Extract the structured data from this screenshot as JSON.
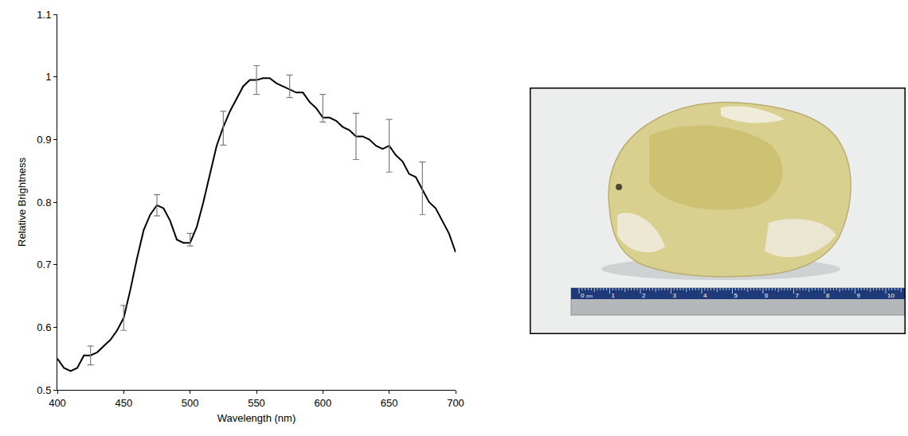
{
  "chart_data": {
    "type": "line",
    "x_label": "Wavelength (nm)",
    "y_label": "Relative Brightness",
    "x": [
      400,
      405,
      410,
      415,
      420,
      425,
      430,
      435,
      440,
      445,
      450,
      455,
      460,
      465,
      470,
      475,
      480,
      485,
      490,
      495,
      500,
      505,
      510,
      515,
      520,
      525,
      530,
      535,
      540,
      545,
      550,
      555,
      560,
      565,
      570,
      575,
      580,
      585,
      590,
      595,
      600,
      605,
      610,
      615,
      620,
      625,
      630,
      635,
      640,
      645,
      650,
      655,
      660,
      665,
      670,
      675,
      680,
      685,
      690,
      695,
      700
    ],
    "values": [
      0.55,
      0.535,
      0.53,
      0.535,
      0.555,
      0.555,
      0.56,
      0.57,
      0.58,
      0.595,
      0.615,
      0.66,
      0.71,
      0.755,
      0.78,
      0.795,
      0.79,
      0.77,
      0.74,
      0.735,
      0.735,
      0.76,
      0.8,
      0.845,
      0.89,
      0.92,
      0.945,
      0.965,
      0.985,
      0.995,
      0.995,
      0.998,
      0.998,
      0.99,
      0.985,
      0.98,
      0.975,
      0.975,
      0.96,
      0.95,
      0.935,
      0.935,
      0.93,
      0.92,
      0.915,
      0.905,
      0.905,
      0.9,
      0.89,
      0.885,
      0.89,
      0.875,
      0.865,
      0.845,
      0.84,
      0.82,
      0.8,
      0.79,
      0.77,
      0.75,
      0.72
    ],
    "color": "#000000",
    "error_bars": {
      "x": [
        425,
        450,
        475,
        500,
        525,
        550,
        575,
        600,
        625,
        650,
        675
      ],
      "values": [
        0.555,
        0.615,
        0.795,
        0.74,
        0.918,
        0.995,
        0.985,
        0.95,
        0.905,
        0.89,
        0.822
      ],
      "error": [
        0.015,
        0.02,
        0.017,
        0.01,
        0.027,
        0.023,
        0.018,
        0.022,
        0.037,
        0.042,
        0.042
      ],
      "color": "#7f7f7f"
    },
    "xlim": [
      400,
      700
    ],
    "xticks": [
      400,
      450,
      500,
      550,
      600,
      650,
      700
    ],
    "ylim": [
      0.5,
      1.1
    ],
    "yticks": [
      0.5,
      0.6,
      0.7,
      0.8,
      0.9,
      1,
      1.1
    ],
    "grid": false
  },
  "photo": {
    "ruler": {
      "unit": "cm",
      "labels": [
        0,
        1,
        2,
        3,
        4,
        5,
        6,
        7,
        8,
        9,
        10
      ]
    }
  }
}
